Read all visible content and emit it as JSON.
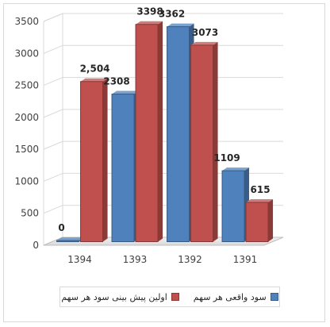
{
  "chart_data": {
    "type": "bar",
    "categories": [
      "1394",
      "1393",
      "1392",
      "1391"
    ],
    "series": [
      {
        "name": "سود واقعی هر سهم",
        "values": [
          0,
          2308,
          3362,
          1109
        ],
        "labels": [
          "0",
          "2308",
          "3362",
          "1109"
        ],
        "color": "#4f81bd"
      },
      {
        "name": "اولین پیش بینی سود هر سهم",
        "values": [
          2504,
          3398,
          3073,
          615
        ],
        "labels": [
          "2,504",
          "3398",
          "3073",
          "615"
        ],
        "color": "#c0504d"
      }
    ],
    "y_ticks": [
      "0",
      "500",
      "1000",
      "1500",
      "2000",
      "2500",
      "3000",
      "3500"
    ],
    "ylim": [
      0,
      3500
    ],
    "style": "3d-clustered-column",
    "grid": true,
    "legend_position": "bottom"
  }
}
